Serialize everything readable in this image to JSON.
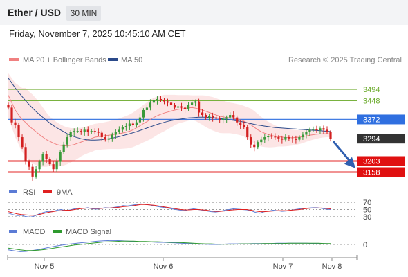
{
  "header": {
    "symbol": "Ether / USD",
    "timeframe": "30 MIN",
    "datetime": "Friday, November 7, 2025 10:45:10 AM CET"
  },
  "legend": {
    "items": [
      {
        "label": "MA 20 + Bollinger Bands",
        "color": "#f08080"
      },
      {
        "label": "MA 50",
        "color": "#2b4a8a"
      }
    ],
    "credit": "Research © 2025 Trading Central"
  },
  "chart_data": [
    {
      "type": "candlestick",
      "x_ticks": [
        "Nov 5",
        "Nov 6",
        "Nov 7",
        "Nov 8"
      ],
      "y_range": [
        3120,
        3590
      ],
      "price_levels": [
        {
          "value": 3494,
          "label": "3494",
          "color": "#6aaa2a",
          "kind": "resistance"
        },
        {
          "value": 3448,
          "label": "3448",
          "color": "#6aaa2a",
          "kind": "resistance"
        },
        {
          "value": 3372,
          "label": "3372",
          "color": "#2f6fe0",
          "kind": "pivot"
        },
        {
          "value": 3294,
          "label": "3294",
          "color": "#333333",
          "kind": "last"
        },
        {
          "value": 3203,
          "label": "3203",
          "color": "#e01010",
          "kind": "support"
        },
        {
          "value": 3158,
          "label": "3158",
          "color": "#e01010",
          "kind": "support"
        }
      ],
      "closes": [
        3420,
        3360,
        3350,
        3300,
        3260,
        3200,
        3180,
        3140,
        3170,
        3200,
        3230,
        3210,
        3190,
        3170,
        3200,
        3240,
        3270,
        3300,
        3320,
        3325,
        3325,
        3320,
        3330,
        3320,
        3325,
        3322,
        3318,
        3300,
        3290,
        3295,
        3310,
        3320,
        3330,
        3340,
        3345,
        3355,
        3350,
        3360,
        3380,
        3410,
        3420,
        3440,
        3450,
        3455,
        3450,
        3445,
        3440,
        3430,
        3420,
        3425,
        3420,
        3415,
        3430,
        3440,
        3445,
        3400,
        3390,
        3380,
        3385,
        3380,
        3375,
        3370,
        3375,
        3380,
        3390,
        3380,
        3360,
        3350,
        3340,
        3300,
        3270,
        3260,
        3280,
        3290,
        3300,
        3305,
        3302,
        3300,
        3295,
        3290,
        3300,
        3295,
        3292,
        3290,
        3300,
        3310,
        3320,
        3330,
        3332,
        3328,
        3336,
        3330,
        3320,
        3294
      ],
      "ma20": [
        3470,
        3440,
        3410,
        3390,
        3370,
        3360,
        3345,
        3333,
        3322,
        3310,
        3300,
        3290,
        3283,
        3276,
        3270,
        3267,
        3265,
        3265,
        3267,
        3270,
        3275,
        3280,
        3285,
        3290,
        3295,
        3300,
        3302,
        3304,
        3306,
        3308,
        3310,
        3312,
        3314,
        3317,
        3320,
        3324,
        3330,
        3338,
        3346,
        3355,
        3363,
        3372,
        3380,
        3387,
        3393,
        3398,
        3402,
        3406,
        3410,
        3413,
        3415,
        3417,
        3419,
        3420,
        3418,
        3414,
        3410,
        3405,
        3400,
        3395,
        3390,
        3385,
        3382,
        3380,
        3378,
        3376,
        3373,
        3370,
        3365,
        3358,
        3350,
        3340,
        3330,
        3322,
        3316,
        3311,
        3307,
        3304,
        3302,
        3300,
        3299,
        3298,
        3298,
        3299,
        3300,
        3302,
        3305,
        3308,
        3310,
        3312,
        3313,
        3314,
        3314,
        3313
      ],
      "ma50": [
        3540,
        3520,
        3500,
        3482,
        3465,
        3448,
        3432,
        3418,
        3404,
        3392,
        3380,
        3368,
        3357,
        3347,
        3338,
        3330,
        3322,
        3314,
        3308,
        3302,
        3298,
        3294,
        3291,
        3289,
        3288,
        3288,
        3289,
        3290,
        3292,
        3294,
        3296,
        3299,
        3302,
        3306,
        3310,
        3314,
        3318,
        3322,
        3327,
        3332,
        3337,
        3342,
        3347,
        3352,
        3356,
        3360,
        3364,
        3367,
        3370,
        3372,
        3374,
        3376,
        3378,
        3379,
        3380,
        3381,
        3381,
        3381,
        3380,
        3379,
        3378,
        3376,
        3374,
        3372,
        3370,
        3368,
        3366,
        3364,
        3361,
        3358,
        3355,
        3352,
        3349,
        3347,
        3345,
        3343,
        3341,
        3339,
        3338,
        3337,
        3336,
        3335,
        3334,
        3333,
        3332,
        3331,
        3330,
        3329,
        3328,
        3327,
        3326,
        3325,
        3324,
        3323
      ],
      "bb_width": [
        90,
        100,
        110,
        120,
        130,
        140,
        140,
        140,
        135,
        130,
        120,
        110,
        100,
        95,
        90,
        85,
        80,
        75,
        70,
        66,
        62,
        58,
        56,
        55,
        55,
        54,
        54,
        54,
        55,
        56,
        58,
        60,
        62,
        64,
        66,
        68,
        70,
        72,
        74,
        76,
        78,
        80,
        80,
        78,
        76,
        74,
        70,
        66,
        62,
        58,
        56,
        54,
        52,
        50,
        52,
        56,
        60,
        64,
        66,
        68,
        68,
        68,
        66,
        64,
        62,
        62,
        62,
        62,
        62,
        64,
        66,
        66,
        64,
        60,
        56,
        52,
        48,
        44,
        40,
        38,
        36,
        34,
        32,
        30,
        28,
        26,
        24,
        22,
        20,
        18,
        16,
        15,
        14,
        13
      ]
    },
    {
      "type": "line",
      "name": "RSI",
      "levels": [
        70,
        50,
        30
      ],
      "y_range": [
        20,
        80
      ],
      "series": [
        {
          "name": "RSI",
          "color": "#5b7bd5",
          "values": [
            40,
            36,
            33,
            34,
            30,
            29,
            32,
            38,
            42,
            45,
            44,
            48,
            50,
            47,
            49,
            52,
            54,
            53,
            55,
            52,
            51,
            53,
            55,
            54,
            56,
            58,
            61,
            60,
            62,
            64,
            66,
            64,
            63,
            60,
            58,
            56,
            54,
            52,
            50,
            48,
            47,
            50,
            52,
            50,
            48,
            46,
            44,
            43,
            45,
            48,
            50,
            52,
            51,
            50,
            49,
            47,
            42,
            40,
            44,
            46,
            48,
            47,
            45,
            46,
            48,
            50,
            52,
            53,
            54,
            55,
            55,
            53,
            51,
            50
          ]
        },
        {
          "name": "9MA",
          "color": "#e02020",
          "values": [
            44,
            41,
            38,
            36,
            35,
            34,
            34,
            36,
            39,
            42,
            44,
            46,
            47,
            48,
            48,
            50,
            52,
            53,
            54,
            53,
            53,
            53,
            54,
            54,
            55,
            56,
            58,
            59,
            60,
            62,
            64,
            64,
            63,
            62,
            60,
            58,
            56,
            54,
            52,
            50,
            49,
            49,
            50,
            50,
            49,
            48,
            46,
            45,
            45,
            46,
            48,
            49,
            50,
            50,
            50,
            48,
            46,
            44,
            44,
            45,
            46,
            47,
            47,
            47,
            48,
            49,
            50,
            52,
            53,
            54,
            54,
            54,
            53,
            52
          ]
        }
      ]
    },
    {
      "type": "line",
      "name": "MACD",
      "levels": [
        0
      ],
      "y_range": [
        -30,
        30
      ],
      "series": [
        {
          "name": "MACD",
          "color": "#5b7bd5",
          "values": [
            -18,
            -21,
            -24,
            -23,
            -20,
            -17,
            -13,
            -9,
            -5,
            -2,
            1,
            3,
            5,
            7,
            9,
            11,
            12,
            13,
            13,
            12,
            11,
            10,
            9,
            8,
            8,
            7,
            7,
            6,
            5,
            4,
            3,
            2,
            1,
            1,
            0,
            0,
            1,
            2,
            2,
            2,
            2,
            3,
            3,
            3,
            3,
            4,
            4,
            4,
            4,
            4,
            4,
            3,
            3,
            3,
            2
          ]
        },
        {
          "name": "MACD Signal",
          "color": "#2e9a2e",
          "values": [
            -12,
            -15,
            -18,
            -20,
            -20,
            -19,
            -17,
            -14,
            -11,
            -8,
            -5,
            -2,
            0,
            2,
            4,
            6,
            8,
            9,
            10,
            11,
            11,
            11,
            10,
            10,
            9,
            9,
            8,
            7,
            7,
            6,
            5,
            4,
            3,
            2,
            2,
            1,
            1,
            1,
            1,
            2,
            2,
            2,
            2,
            3,
            3,
            3,
            3,
            4,
            4,
            4,
            4,
            4,
            4,
            3,
            3
          ]
        }
      ]
    }
  ]
}
